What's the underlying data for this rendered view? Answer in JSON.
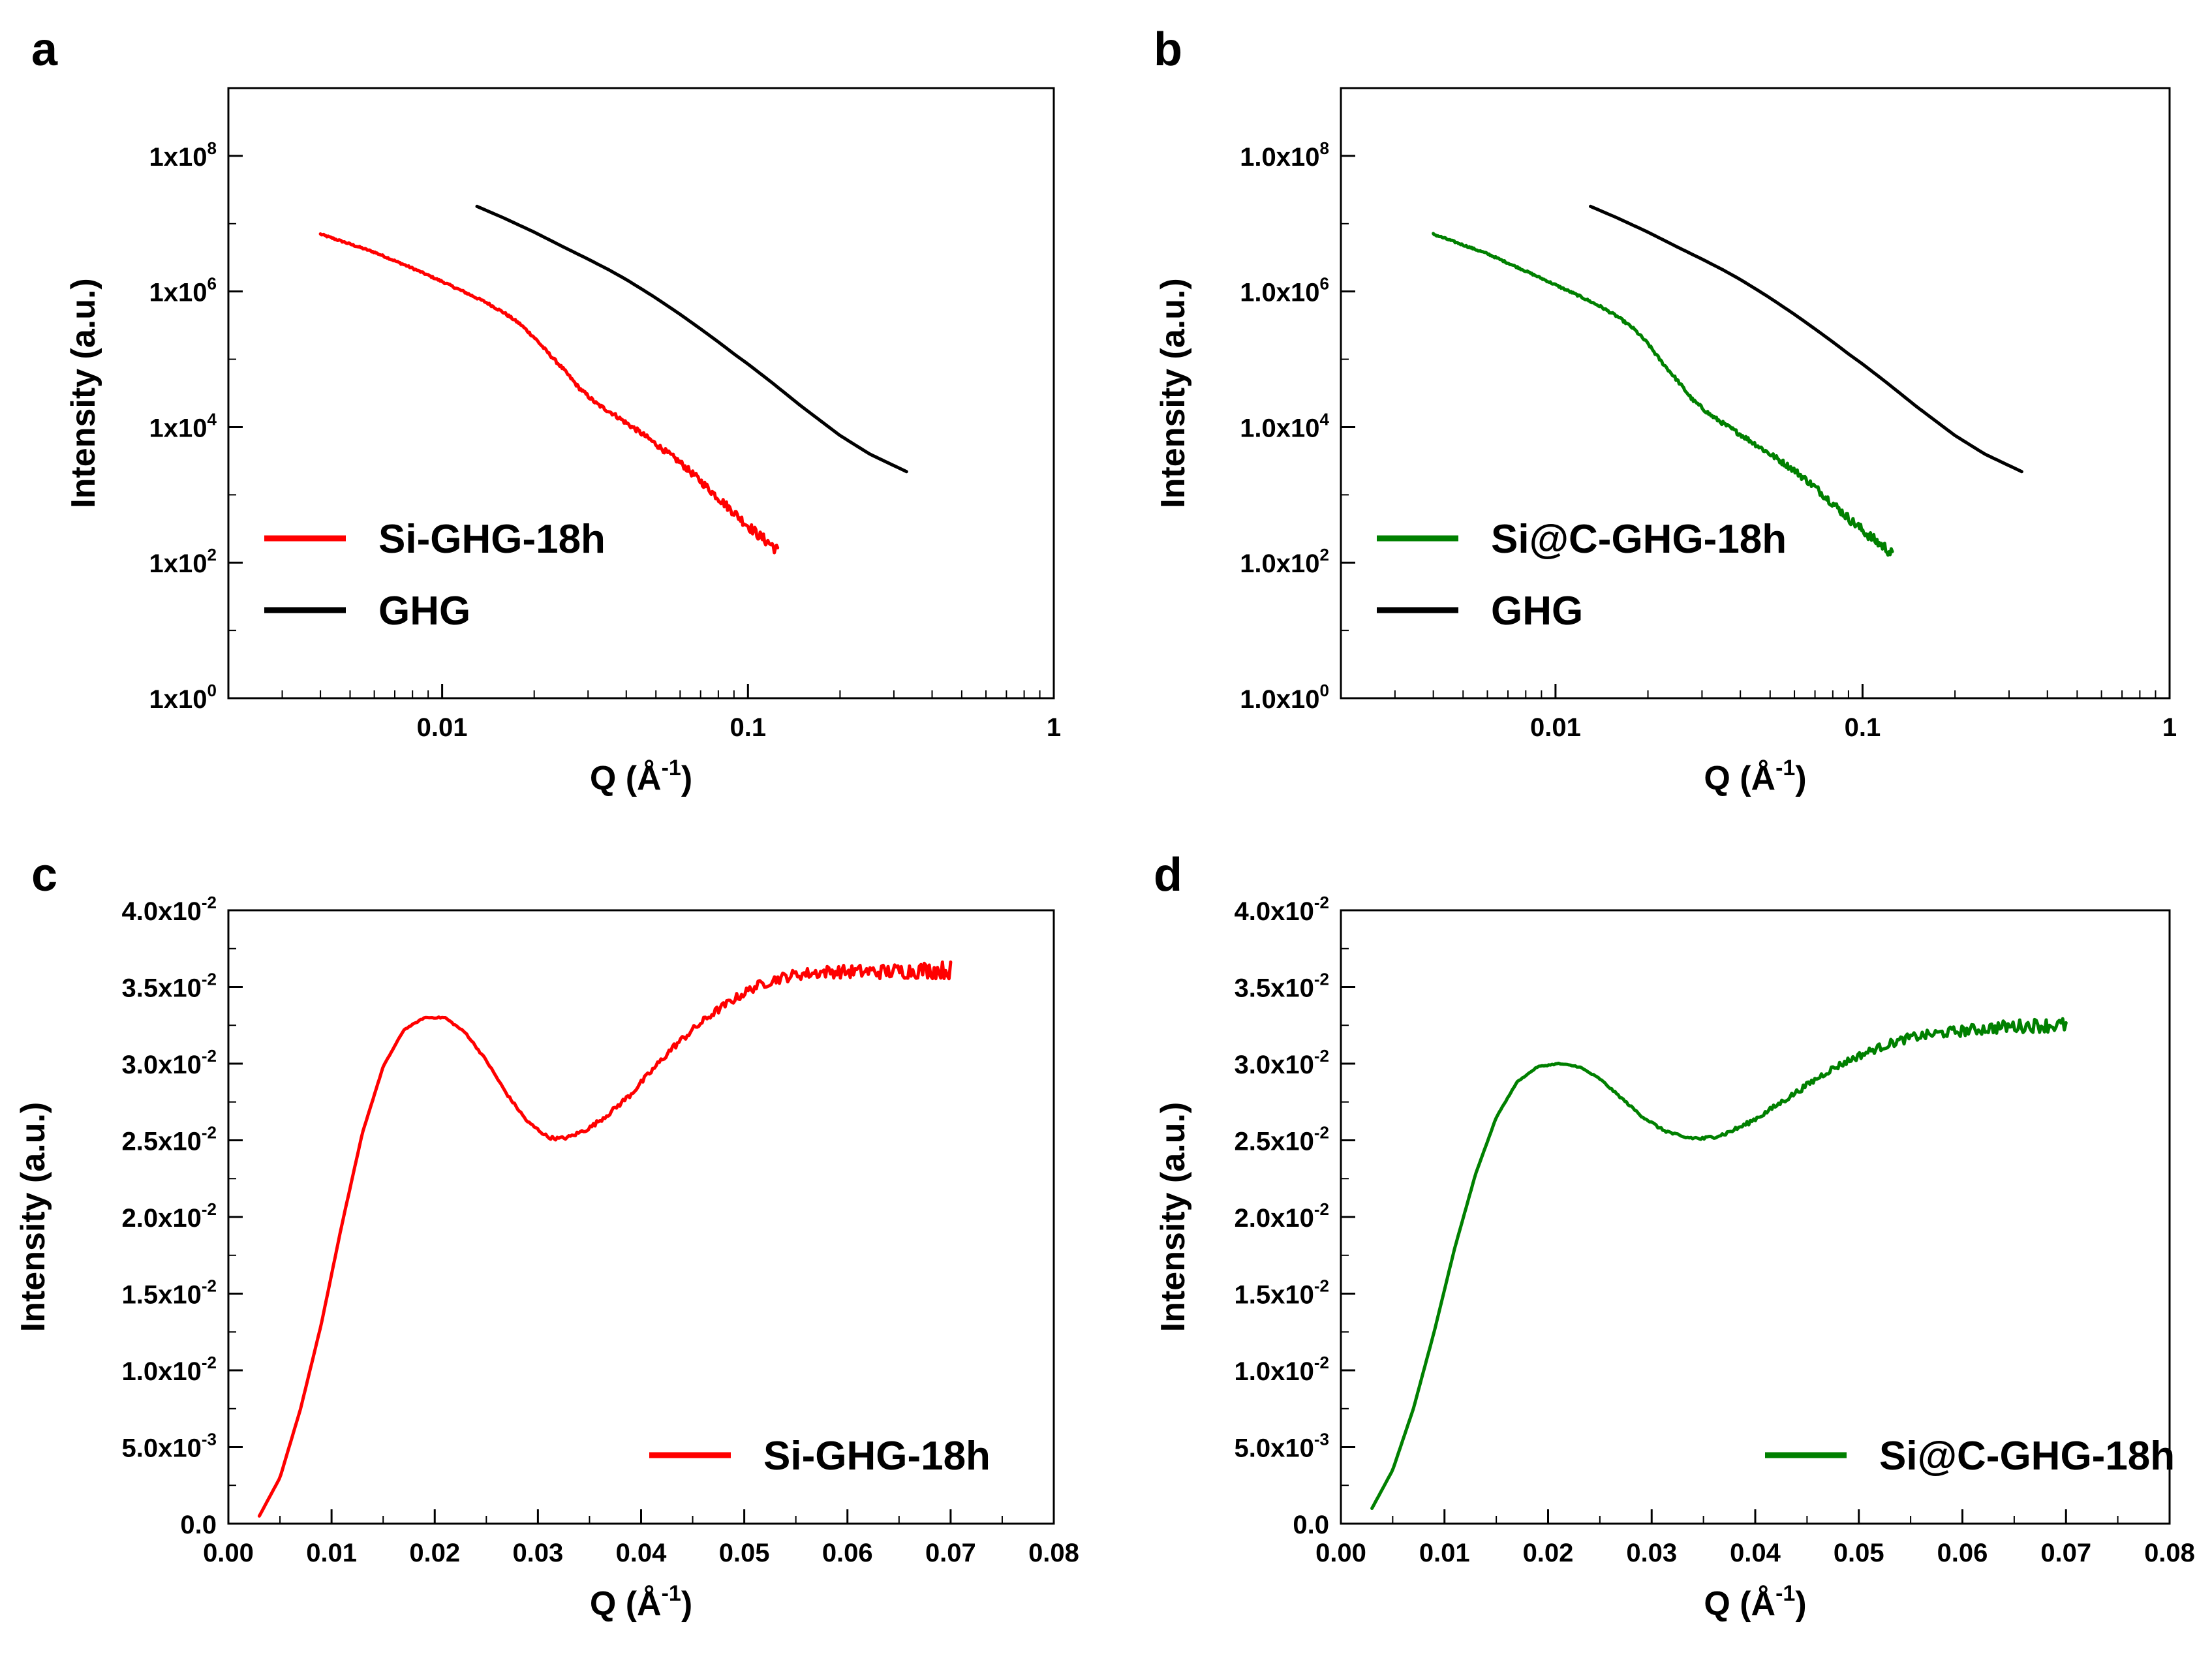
{
  "chart_data": [
    {
      "panel": "a",
      "type": "line",
      "xscale": "log",
      "yscale": "log",
      "xlim": [
        0.002,
        1
      ],
      "ylim": [
        1,
        1000000000
      ],
      "xticks": [
        {
          "value": 0.01,
          "label": "0.01"
        },
        {
          "value": 0.1,
          "label": "0.1"
        },
        {
          "value": 1,
          "label": "1"
        }
      ],
      "yticks": [
        {
          "value": 1,
          "base": "1x10",
          "exp": "0"
        },
        {
          "value": 100,
          "base": "1x10",
          "exp": "2"
        },
        {
          "value": 10000,
          "base": "1x10",
          "exp": "4"
        },
        {
          "value": 1000000,
          "base": "1x10",
          "exp": "6"
        },
        {
          "value": 100000000,
          "base": "1x10",
          "exp": "8"
        }
      ],
      "xlabel": {
        "text": "Q (Å",
        "sup": "-1",
        "close": ")"
      },
      "ylabel": "Intensity (a.u.)",
      "legend_position": "bottom-left",
      "series": [
        {
          "name": "Si-GHG-18h",
          "color": "#ff0000",
          "noise": 0.012,
          "x": [
            0.004,
            0.006,
            0.008,
            0.01,
            0.012,
            0.014,
            0.016,
            0.018,
            0.02,
            0.022,
            0.025,
            0.028,
            0.032,
            0.036,
            0.04,
            0.045,
            0.05,
            0.06,
            0.07,
            0.08,
            0.09,
            0.1,
            0.11,
            0.12,
            0.125
          ],
          "y": [
            7000000,
            3800000,
            2200000,
            1400000,
            950000,
            680000,
            480000,
            330000,
            210000,
            130000,
            70000,
            38000,
            22000,
            16000,
            11500,
            8000,
            5600,
            3000,
            1600,
            900,
            550,
            350,
            240,
            180,
            150
          ]
        },
        {
          "name": "GHG",
          "color": "#000000",
          "noise": 0,
          "x": [
            0.013,
            0.016,
            0.02,
            0.025,
            0.03,
            0.035,
            0.04,
            0.045,
            0.05,
            0.06,
            0.07,
            0.08,
            0.09,
            0.1,
            0.12,
            0.15,
            0.2,
            0.25,
            0.3,
            0.33
          ],
          "y": [
            18000000,
            12000000,
            7500000,
            4500000,
            3000000,
            2100000,
            1500000,
            1080000,
            800000,
            460000,
            280000,
            180000,
            120000,
            85000,
            45000,
            20000,
            7500,
            4000,
            2700,
            2200
          ]
        }
      ]
    },
    {
      "panel": "b",
      "type": "line",
      "xscale": "log",
      "yscale": "log",
      "xlim": [
        0.002,
        1
      ],
      "ylim": [
        1,
        1000000000
      ],
      "xticks": [
        {
          "value": 0.01,
          "label": "0.01"
        },
        {
          "value": 0.1,
          "label": "0.1"
        },
        {
          "value": 1,
          "label": "1"
        }
      ],
      "yticks": [
        {
          "value": 1,
          "base": "1.0x10",
          "exp": "0"
        },
        {
          "value": 100,
          "base": "1.0x10",
          "exp": "2"
        },
        {
          "value": 10000,
          "base": "1.0x10",
          "exp": "4"
        },
        {
          "value": 1000000,
          "base": "1.0x10",
          "exp": "6"
        },
        {
          "value": 100000000,
          "base": "1.0x10",
          "exp": "8"
        }
      ],
      "xlabel": {
        "text": "Q (Å",
        "sup": "-1",
        "close": ")"
      },
      "ylabel": "Intensity (a.u.)",
      "legend_position": "bottom-left",
      "series": [
        {
          "name": "Si@C-GHG-18h",
          "color": "#008000",
          "noise": 0.012,
          "x": [
            0.004,
            0.006,
            0.008,
            0.01,
            0.012,
            0.014,
            0.016,
            0.018,
            0.02,
            0.022,
            0.025,
            0.028,
            0.032,
            0.036,
            0.04,
            0.045,
            0.05,
            0.06,
            0.07,
            0.08,
            0.09,
            0.1,
            0.11,
            0.12,
            0.125
          ],
          "y": [
            7000000,
            3600000,
            2000000,
            1250000,
            850000,
            600000,
            420000,
            280000,
            170000,
            95000,
            48000,
            25000,
            15000,
            10500,
            7800,
            5500,
            4000,
            2300,
            1300,
            750,
            450,
            300,
            210,
            160,
            130
          ]
        },
        {
          "name": "GHG",
          "color": "#000000",
          "noise": 0,
          "x": [
            0.013,
            0.016,
            0.02,
            0.025,
            0.03,
            0.035,
            0.04,
            0.045,
            0.05,
            0.06,
            0.07,
            0.08,
            0.09,
            0.1,
            0.12,
            0.15,
            0.2,
            0.25,
            0.3,
            0.33
          ],
          "y": [
            18000000,
            12000000,
            7500000,
            4500000,
            3000000,
            2100000,
            1500000,
            1080000,
            800000,
            460000,
            280000,
            180000,
            120000,
            85000,
            45000,
            20000,
            7500,
            4000,
            2700,
            2200
          ]
        }
      ]
    },
    {
      "panel": "c",
      "type": "line",
      "xscale": "linear",
      "yscale": "linear",
      "xlim": [
        0,
        0.08
      ],
      "ylim": [
        0,
        0.04
      ],
      "xticks": [
        {
          "value": 0.0,
          "label": "0.00"
        },
        {
          "value": 0.01,
          "label": "0.01"
        },
        {
          "value": 0.02,
          "label": "0.02"
        },
        {
          "value": 0.03,
          "label": "0.03"
        },
        {
          "value": 0.04,
          "label": "0.04"
        },
        {
          "value": 0.05,
          "label": "0.05"
        },
        {
          "value": 0.06,
          "label": "0.06"
        },
        {
          "value": 0.07,
          "label": "0.07"
        },
        {
          "value": 0.08,
          "label": "0.08"
        }
      ],
      "yticks": [
        {
          "value": 0,
          "base": "0.0",
          "exp": ""
        },
        {
          "value": 0.005,
          "base": "5.0x10",
          "exp": "-3"
        },
        {
          "value": 0.01,
          "base": "1.0x10",
          "exp": "-2"
        },
        {
          "value": 0.015,
          "base": "1.5x10",
          "exp": "-2"
        },
        {
          "value": 0.02,
          "base": "2.0x10",
          "exp": "-2"
        },
        {
          "value": 0.025,
          "base": "2.5x10",
          "exp": "-2"
        },
        {
          "value": 0.03,
          "base": "3.0x10",
          "exp": "-2"
        },
        {
          "value": 0.035,
          "base": "3.5x10",
          "exp": "-2"
        },
        {
          "value": 0.04,
          "base": "4.0x10",
          "exp": "-2"
        }
      ],
      "xlabel": {
        "text": "Q (Å",
        "sup": "-1",
        "close": ")"
      },
      "ylabel": "Intensity (a.u.)",
      "legend_position": "bottom-right",
      "series": [
        {
          "name": "Si-GHG-18h",
          "color": "#ff0000",
          "noise": 0.0006,
          "x": [
            0.003,
            0.005,
            0.007,
            0.009,
            0.011,
            0.013,
            0.015,
            0.017,
            0.019,
            0.021,
            0.023,
            0.025,
            0.027,
            0.029,
            0.031,
            0.032,
            0.033,
            0.035,
            0.037,
            0.039,
            0.041,
            0.043,
            0.045,
            0.047,
            0.049,
            0.051,
            0.053,
            0.055,
            0.058,
            0.061,
            0.064,
            0.067,
            0.07
          ],
          "y": [
            0.0005,
            0.003,
            0.0075,
            0.013,
            0.0195,
            0.0255,
            0.0298,
            0.0322,
            0.033,
            0.033,
            0.032,
            0.0302,
            0.028,
            0.0262,
            0.0252,
            0.0251,
            0.0252,
            0.0258,
            0.0268,
            0.028,
            0.0295,
            0.031,
            0.0322,
            0.0333,
            0.0342,
            0.035,
            0.0355,
            0.0358,
            0.036,
            0.036,
            0.036,
            0.0361,
            0.0361
          ]
        }
      ]
    },
    {
      "panel": "d",
      "type": "line",
      "xscale": "linear",
      "yscale": "linear",
      "xlim": [
        0,
        0.08
      ],
      "ylim": [
        0,
        0.04
      ],
      "xticks": [
        {
          "value": 0.0,
          "label": "0.00"
        },
        {
          "value": 0.01,
          "label": "0.01"
        },
        {
          "value": 0.02,
          "label": "0.02"
        },
        {
          "value": 0.03,
          "label": "0.03"
        },
        {
          "value": 0.04,
          "label": "0.04"
        },
        {
          "value": 0.05,
          "label": "0.05"
        },
        {
          "value": 0.06,
          "label": "0.06"
        },
        {
          "value": 0.07,
          "label": "0.07"
        },
        {
          "value": 0.08,
          "label": "0.08"
        }
      ],
      "yticks": [
        {
          "value": 0,
          "base": "0.0",
          "exp": ""
        },
        {
          "value": 0.005,
          "base": "5.0x10",
          "exp": "-3"
        },
        {
          "value": 0.01,
          "base": "1.0x10",
          "exp": "-2"
        },
        {
          "value": 0.015,
          "base": "1.5x10",
          "exp": "-2"
        },
        {
          "value": 0.02,
          "base": "2.0x10",
          "exp": "-2"
        },
        {
          "value": 0.025,
          "base": "2.5x10",
          "exp": "-2"
        },
        {
          "value": 0.03,
          "base": "3.0x10",
          "exp": "-2"
        },
        {
          "value": 0.035,
          "base": "3.5x10",
          "exp": "-2"
        },
        {
          "value": 0.04,
          "base": "4.0x10",
          "exp": "-2"
        }
      ],
      "xlabel": {
        "text": "Q (Å",
        "sup": "-1",
        "close": ")"
      },
      "ylabel": "Intensity (a.u.)",
      "legend_position": "bottom-right",
      "series": [
        {
          "name": "Si@C-GHG-18h",
          "color": "#008000",
          "noise": 0.0005,
          "x": [
            0.003,
            0.005,
            0.007,
            0.009,
            0.011,
            0.013,
            0.015,
            0.017,
            0.019,
            0.021,
            0.023,
            0.025,
            0.027,
            0.029,
            0.031,
            0.033,
            0.035,
            0.037,
            0.039,
            0.041,
            0.043,
            0.045,
            0.047,
            0.049,
            0.051,
            0.053,
            0.055,
            0.058,
            0.061,
            0.064,
            0.067,
            0.07
          ],
          "y": [
            0.001,
            0.0035,
            0.0075,
            0.0125,
            0.018,
            0.0228,
            0.0265,
            0.0288,
            0.0298,
            0.03,
            0.0298,
            0.029,
            0.0278,
            0.0266,
            0.0257,
            0.0252,
            0.0251,
            0.0254,
            0.026,
            0.0268,
            0.0277,
            0.0286,
            0.0295,
            0.0302,
            0.0308,
            0.0313,
            0.0317,
            0.032,
            0.0322,
            0.0324,
            0.0325,
            0.0325
          ]
        }
      ]
    }
  ]
}
